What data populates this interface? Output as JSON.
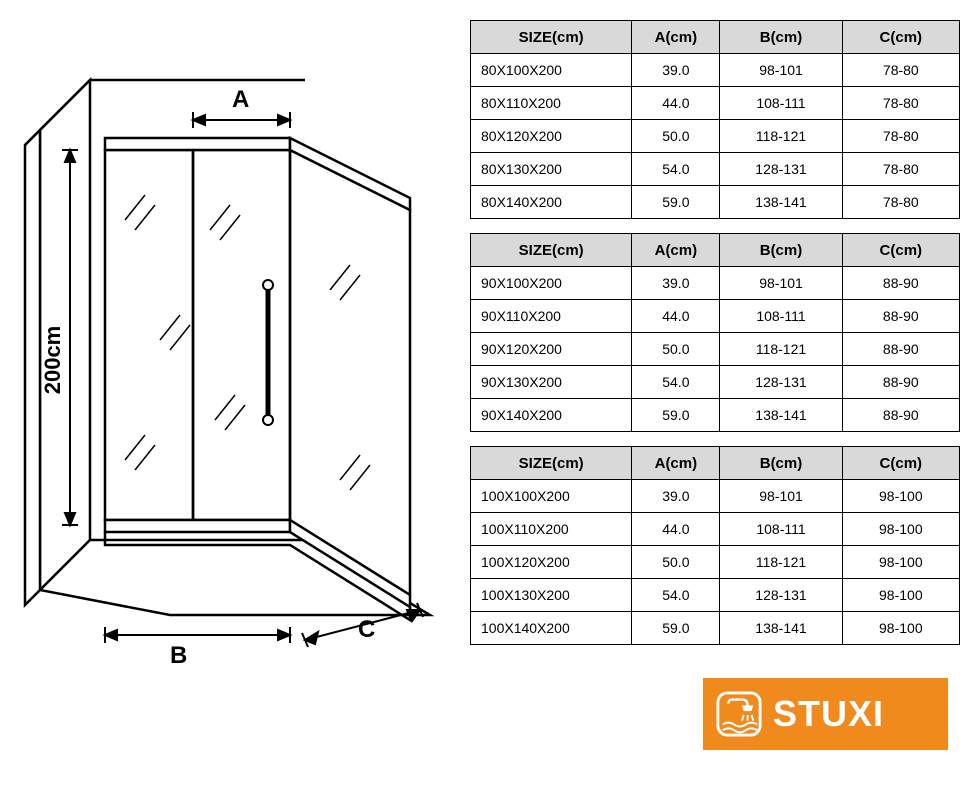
{
  "diagram": {
    "height_label": "200cm",
    "label_A": "A",
    "label_B": "B",
    "label_C": "C",
    "stroke": "#000000",
    "fill_bg": "#ffffff",
    "glass_stroke": "#000000"
  },
  "tables": {
    "headers": [
      "SIZE(cm)",
      "A(cm)",
      "B(cm)",
      "C(cm)"
    ],
    "col_widths_pct": [
      33,
      18,
      25,
      24
    ],
    "header_bg": "#d9d9d9",
    "border_color": "#000000",
    "groups": [
      {
        "rows": [
          [
            "80X100X200",
            "39.0",
            "98-101",
            "78-80"
          ],
          [
            "80X110X200",
            "44.0",
            "108-111",
            "78-80"
          ],
          [
            "80X120X200",
            "50.0",
            "118-121",
            "78-80"
          ],
          [
            "80X130X200",
            "54.0",
            "128-131",
            "78-80"
          ],
          [
            "80X140X200",
            "59.0",
            "138-141",
            "78-80"
          ]
        ]
      },
      {
        "rows": [
          [
            "90X100X200",
            "39.0",
            "98-101",
            "88-90"
          ],
          [
            "90X110X200",
            "44.0",
            "108-111",
            "88-90"
          ],
          [
            "90X120X200",
            "50.0",
            "118-121",
            "88-90"
          ],
          [
            "90X130X200",
            "54.0",
            "128-131",
            "88-90"
          ],
          [
            "90X140X200",
            "59.0",
            "138-141",
            "88-90"
          ]
        ]
      },
      {
        "rows": [
          [
            "100X100X200",
            "39.0",
            "98-101",
            "98-100"
          ],
          [
            "100X110X200",
            "44.0",
            "108-111",
            "98-100"
          ],
          [
            "100X120X200",
            "50.0",
            "118-121",
            "98-100"
          ],
          [
            "100X130X200",
            "54.0",
            "128-131",
            "98-100"
          ],
          [
            "100X140X200",
            "59.0",
            "138-141",
            "98-100"
          ]
        ]
      }
    ]
  },
  "logo": {
    "text": "STUXI",
    "bg_color": "#f08a1d",
    "text_color": "#ffffff",
    "icon_stroke": "#ffffff"
  }
}
